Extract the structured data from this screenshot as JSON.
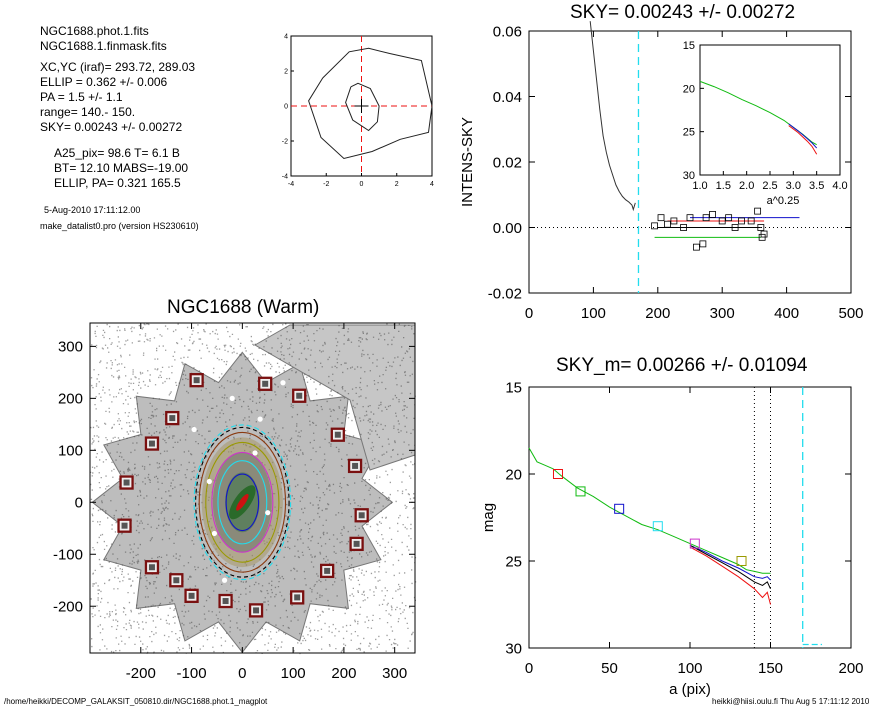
{
  "info": {
    "lines": [
      "NGC1688.phot.1.fits",
      "NGC1688.1.finmask.fits",
      "XC,YC (iraf)=    293.72, 289.03",
      "ELLIP = 0.362 +/- 0.006",
      "PA    =   1.5 +/-   1.1",
      "range=  140.-  150.",
      "SKY= 0.00243 +/- 0.00272",
      "A25_pix= 98.6   T= 6.1  B",
      "BT=  12.10   MABS=-19.00",
      "ELLIP, PA= 0.321   165.5"
    ],
    "date": "5-Aug-2010 17:11:12.00",
    "program": "make_datalist0.pro (version HS230610)"
  },
  "footer": {
    "left": "/home/heikki/DECOMP_GALAKSIT_050810.dir/NGC1688.phot.1_magplot",
    "right": "heikki@hiisi.oulu.fi  Thu Aug  5 17:11:12 2010"
  },
  "colors": {
    "cyan": "#22ddee",
    "red": "#ee1111",
    "green": "#11bb11",
    "blue": "#1111cc",
    "magenta": "#cc33cc",
    "olive": "#999900",
    "mask": "#7a1010"
  },
  "chart_data": [
    {
      "type": "line",
      "title": "",
      "xlim": [
        -4,
        4
      ],
      "ylim": [
        -4,
        4
      ],
      "xticks": [
        "-4",
        "-2",
        "0",
        "2",
        "4"
      ],
      "yticks": [
        "-4",
        "-2",
        "0",
        "2",
        "4"
      ],
      "crosshair": [
        0,
        0
      ],
      "contours": [
        {
          "x": [
            -0.6,
            -0.2,
            0.5,
            1.0,
            0.9,
            0.4,
            -0.5,
            -0.9,
            -0.6
          ],
          "y": [
            1.1,
            1.3,
            1.0,
            0.0,
            -0.9,
            -1.4,
            -0.8,
            0.2,
            1.1
          ]
        },
        {
          "x": [
            -2.2,
            -0.7,
            0.4,
            1.6,
            3.4,
            4.0,
            3.8,
            2.2,
            0.6,
            -1.0,
            -2.3,
            -3.0,
            -2.2
          ],
          "y": [
            1.6,
            3.1,
            3.3,
            3.0,
            2.6,
            0.0,
            -1.5,
            -1.9,
            -2.6,
            -3.0,
            -1.8,
            0.3,
            1.6
          ]
        }
      ]
    },
    {
      "type": "line",
      "title": "SKY= 0.00243 +/- 0.00272",
      "xlabel": "",
      "ylabel": "INTENS-SKY",
      "xlim": [
        0,
        500
      ],
      "ylim": [
        -0.02,
        0.06
      ],
      "xticks": [
        "0",
        "100",
        "200",
        "300",
        "400",
        "500"
      ],
      "yticks": [
        "-0.02",
        "0.00",
        "0.02",
        "0.04",
        "0.06"
      ],
      "sky_marker_x": 170,
      "profile": {
        "x": [
          95,
          100,
          105,
          110,
          115,
          120,
          125,
          130,
          135,
          140,
          145,
          150,
          155,
          160,
          162,
          165
        ],
        "y": [
          0.063,
          0.054,
          0.045,
          0.036,
          0.028,
          0.023,
          0.019,
          0.016,
          0.013,
          0.011,
          0.0095,
          0.0085,
          0.0078,
          0.0068,
          0.0055,
          0.0075
        ]
      },
      "box_points": {
        "x": [
          195,
          205,
          215,
          225,
          240,
          250,
          260,
          270,
          275,
          285,
          300,
          310,
          320,
          330,
          345,
          355,
          360,
          362,
          365
        ],
        "y": [
          0.0005,
          0.003,
          0.001,
          0.002,
          0.0,
          0.003,
          -0.006,
          -0.005,
          0.003,
          0.004,
          0.002,
          0.003,
          0.0,
          0.002,
          0.002,
          0.005,
          0.0,
          -0.003,
          -0.002
        ]
      },
      "sky_bands": [
        {
          "color": "green",
          "x": [
            195,
            360
          ],
          "y": -0.003
        },
        {
          "color": "red",
          "x": [
            215,
            365
          ],
          "y": 0.002
        },
        {
          "color": "blue",
          "x": [
            250,
            420
          ],
          "y": 0.003
        },
        {
          "color": "black",
          "x": [
            200,
            360
          ],
          "y": 0.0
        }
      ],
      "inset": {
        "xlabel": "a^0.25",
        "xlim": [
          1.0,
          4.0
        ],
        "ylim": [
          15,
          30
        ],
        "xticks": [
          "1.0",
          "1.5",
          "2.0",
          "2.5",
          "3.0",
          "3.5",
          "4.0"
        ],
        "yticks": [
          "15",
          "20",
          "25",
          "30"
        ],
        "series": [
          {
            "color": "green",
            "x": [
              1.0,
              1.3,
              1.6,
              1.9,
              2.2,
              2.5,
              2.8,
              3.0,
              3.2,
              3.4,
              3.5
            ],
            "y": [
              19.2,
              19.8,
              20.5,
              21.3,
              22.0,
              22.8,
              23.7,
              24.5,
              25.3,
              26.2,
              26.5
            ]
          },
          {
            "color": "red",
            "x": [
              2.9,
              3.1,
              3.3,
              3.4,
              3.5
            ],
            "y": [
              24.3,
              25.1,
              26.1,
              26.7,
              27.6
            ]
          },
          {
            "color": "blue",
            "x": [
              2.9,
              3.1,
              3.3,
              3.4,
              3.5
            ],
            "y": [
              24.1,
              24.9,
              25.8,
              26.3,
              26.9
            ]
          }
        ]
      }
    },
    {
      "type": "heatmap",
      "title": "NGC1688 (Warm)",
      "xlim": [
        -300,
        340
      ],
      "ylim": [
        -290,
        345
      ],
      "xticks": [
        "-200",
        "-100",
        "0",
        "100",
        "200",
        "300"
      ],
      "yticks": [
        "-200",
        "-100",
        "0",
        "100",
        "200",
        "300"
      ],
      "ellipse_semi_axes": [
        100,
        160
      ],
      "mask_boxes": {
        "x": [
          -90,
          45,
          112,
          188,
          222,
          235,
          225,
          167,
          108,
          27,
          -33,
          -100,
          -130,
          -178,
          -232,
          -228,
          -178,
          -138
        ],
        "y": [
          235,
          228,
          205,
          130,
          70,
          -25,
          -80,
          -132,
          -183,
          -208,
          -190,
          -180,
          -150,
          -125,
          -45,
          38,
          113,
          162
        ]
      }
    },
    {
      "type": "line",
      "title": "SKY_m=  0.00266 +/- 0.01094",
      "xlabel": "a (pix)",
      "ylabel": "mag",
      "xlim": [
        0,
        200
      ],
      "ylim": [
        30,
        15
      ],
      "xticks": [
        "0",
        "50",
        "100",
        "150",
        "200"
      ],
      "yticks": [
        "15",
        "20",
        "25",
        "30"
      ],
      "range_lines_x": [
        140,
        150
      ],
      "sky_marker_x": 170,
      "sky_marker_bottom": {
        "x": [
          170,
          182
        ],
        "y": 29.8
      },
      "series": [
        {
          "name": "green",
          "color": "green",
          "x": [
            0,
            5,
            10,
            15,
            20,
            30,
            40,
            50,
            60,
            70,
            80,
            90,
            100,
            110,
            120,
            130,
            135,
            140,
            145,
            150
          ],
          "y": [
            18.5,
            19.3,
            19.5,
            19.7,
            20.1,
            20.8,
            21.3,
            21.9,
            22.4,
            22.9,
            23.2,
            23.6,
            24.0,
            24.4,
            24.8,
            25.2,
            25.5,
            25.6,
            25.7,
            25.7
          ]
        },
        {
          "name": "blue",
          "color": "blue",
          "x": [
            100,
            110,
            120,
            130,
            140,
            145,
            148,
            150
          ],
          "y": [
            24.1,
            24.5,
            25.0,
            25.4,
            25.9,
            26.0,
            25.9,
            26.1
          ]
        },
        {
          "name": "black",
          "color": "black",
          "x": [
            100,
            110,
            120,
            130,
            140,
            145,
            148,
            150
          ],
          "y": [
            24.1,
            24.6,
            25.1,
            25.6,
            26.2,
            26.4,
            26.2,
            26.6
          ]
        },
        {
          "name": "red",
          "color": "red",
          "x": [
            100,
            110,
            120,
            130,
            140,
            145,
            148,
            150
          ],
          "y": [
            24.2,
            24.7,
            25.3,
            25.9,
            26.6,
            27.1,
            26.8,
            27.5
          ]
        }
      ],
      "markers": [
        {
          "x": 18,
          "y": 20.0,
          "color": "red"
        },
        {
          "x": 32,
          "y": 21.0,
          "color": "green"
        },
        {
          "x": 56,
          "y": 22.0,
          "color": "blue"
        },
        {
          "x": 80,
          "y": 23.0,
          "color": "cyan"
        },
        {
          "x": 103,
          "y": 24.0,
          "color": "magenta"
        },
        {
          "x": 132,
          "y": 25.0,
          "color": "olive"
        }
      ]
    }
  ]
}
